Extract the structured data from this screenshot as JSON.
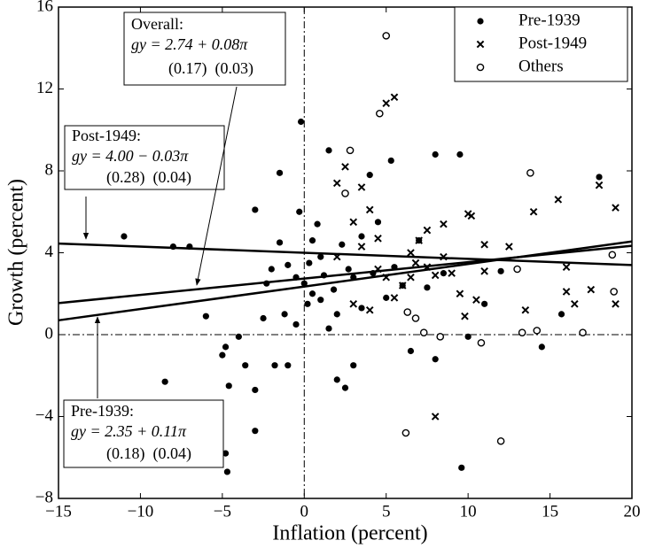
{
  "chart_data": {
    "type": "scatter",
    "x_label": "Inflation (percent)",
    "y_label": "Growth (percent)",
    "xlim": [
      -15,
      20
    ],
    "ylim": [
      -8,
      16
    ],
    "xticks": [
      {
        "value": -15,
        "label": "−15"
      },
      {
        "value": -10,
        "label": "−10"
      },
      {
        "value": -5,
        "label": "−5"
      },
      0,
      5,
      10,
      15,
      20
    ],
    "yticks": [
      {
        "value": -8,
        "label": "−8"
      },
      {
        "value": -4,
        "label": "−4"
      },
      0,
      4,
      8,
      12,
      16
    ],
    "zero_lines": true,
    "series": [
      {
        "name": "Pre-1939",
        "marker": "dot",
        "color": "#000000",
        "x": [
          -11,
          -8.5,
          -8,
          -7,
          -6,
          -5,
          -4.8,
          -4.6,
          -4.8,
          -4.7,
          -4,
          -3.6,
          -3,
          -3,
          -3,
          -2.5,
          -2.3,
          -2,
          -1.8,
          -1.5,
          -1.2,
          -1,
          -1,
          -0.5,
          -0.3,
          -0.2,
          0,
          0.3,
          0.5,
          0.8,
          1,
          1.2,
          1.5,
          1.5,
          1.8,
          2,
          2.3,
          2.5,
          2.7,
          3,
          3,
          3.5,
          4,
          4.2,
          4.5,
          5,
          5.3,
          5.5,
          6,
          6.5,
          7,
          7.5,
          8,
          8,
          8.5,
          9.5,
          9.6,
          10,
          11,
          12,
          14.5,
          15.7,
          18,
          0.5,
          1,
          -0.5,
          2,
          3.5,
          0.2,
          -1.5
        ],
        "values": [
          4.8,
          -2.3,
          4.3,
          4.3,
          0.9,
          -1,
          -0.6,
          -2.5,
          -5.8,
          -6.7,
          -0.1,
          -1.5,
          -4.7,
          6.1,
          -2.7,
          0.8,
          2.5,
          3.2,
          -1.5,
          7.9,
          1,
          -1.5,
          3.4,
          0.5,
          6,
          10.4,
          2.5,
          3.5,
          4.6,
          5.4,
          1.7,
          2.9,
          9,
          0.3,
          2.2,
          -2.2,
          4.4,
          -2.6,
          3.2,
          -1.5,
          2.8,
          4.8,
          7.8,
          3,
          5.5,
          1.8,
          8.5,
          3.3,
          2.4,
          -0.8,
          4.6,
          2.3,
          8.8,
          -1.2,
          3,
          8.8,
          -6.5,
          -0.1,
          1.5,
          3.1,
          -0.6,
          1,
          7.7,
          2,
          3.8,
          2.8,
          1,
          1.3,
          1.5,
          4.5
        ]
      },
      {
        "name": "Post-1949",
        "marker": "x",
        "color": "#000000",
        "x": [
          2,
          2.5,
          3,
          3.5,
          4,
          4.5,
          5,
          5.5,
          5,
          6,
          6.5,
          7,
          7.5,
          8,
          8.5,
          8.5,
          8,
          9,
          9.5,
          10,
          10.5,
          11,
          11,
          12.5,
          13.5,
          14,
          15.5,
          16,
          16,
          16.5,
          17.5,
          18,
          19,
          19,
          2,
          3,
          4,
          5.5,
          6.5,
          7.5,
          9.8,
          10.2,
          3.5,
          4.5,
          6.8
        ],
        "values": [
          7.4,
          8.2,
          5.5,
          4.3,
          6.1,
          3.2,
          11.3,
          11.6,
          2.8,
          2.4,
          4,
          4.6,
          3.3,
          2.9,
          3.8,
          5.4,
          -4,
          3,
          2,
          5.9,
          1.7,
          4.4,
          3.1,
          4.3,
          1.2,
          6,
          6.6,
          2.1,
          3.3,
          1.5,
          2.2,
          7.3,
          6.2,
          1.5,
          3.8,
          1.5,
          1.2,
          1.8,
          2.8,
          5.1,
          0.9,
          5.8,
          7.2,
          4.7,
          3.5
        ]
      },
      {
        "name": "Others",
        "marker": "circle",
        "color": "#000000",
        "x": [
          5,
          4.6,
          2.8,
          2.5,
          6.3,
          6.8,
          7.3,
          8.3,
          6.2,
          10.8,
          12,
          13,
          13.3,
          13.8,
          14.2,
          17,
          18.8,
          18.9
        ],
        "values": [
          14.6,
          10.8,
          9,
          6.9,
          1.1,
          0.8,
          0.1,
          -0.1,
          -4.8,
          -0.4,
          -5.2,
          3.2,
          0.1,
          7.9,
          0.2,
          0.1,
          3.9,
          2.1
        ]
      }
    ],
    "lines": [
      {
        "name": "Overall:",
        "intercept": 2.74,
        "slope": 0.08,
        "equation": "gy = 2.74 + 0.08π",
        "errors": "(0.17)  (0.03)"
      },
      {
        "name": "Post-1949:",
        "intercept": 4.0,
        "slope": -0.03,
        "equation": "gy = 4.00 − 0.03π",
        "errors": "(0.28)  (0.04)"
      },
      {
        "name": "Pre-1939:",
        "intercept": 2.35,
        "slope": 0.11,
        "equation": "gy = 2.35 + 0.11π",
        "errors": "(0.18)  (0.04)"
      }
    ]
  }
}
